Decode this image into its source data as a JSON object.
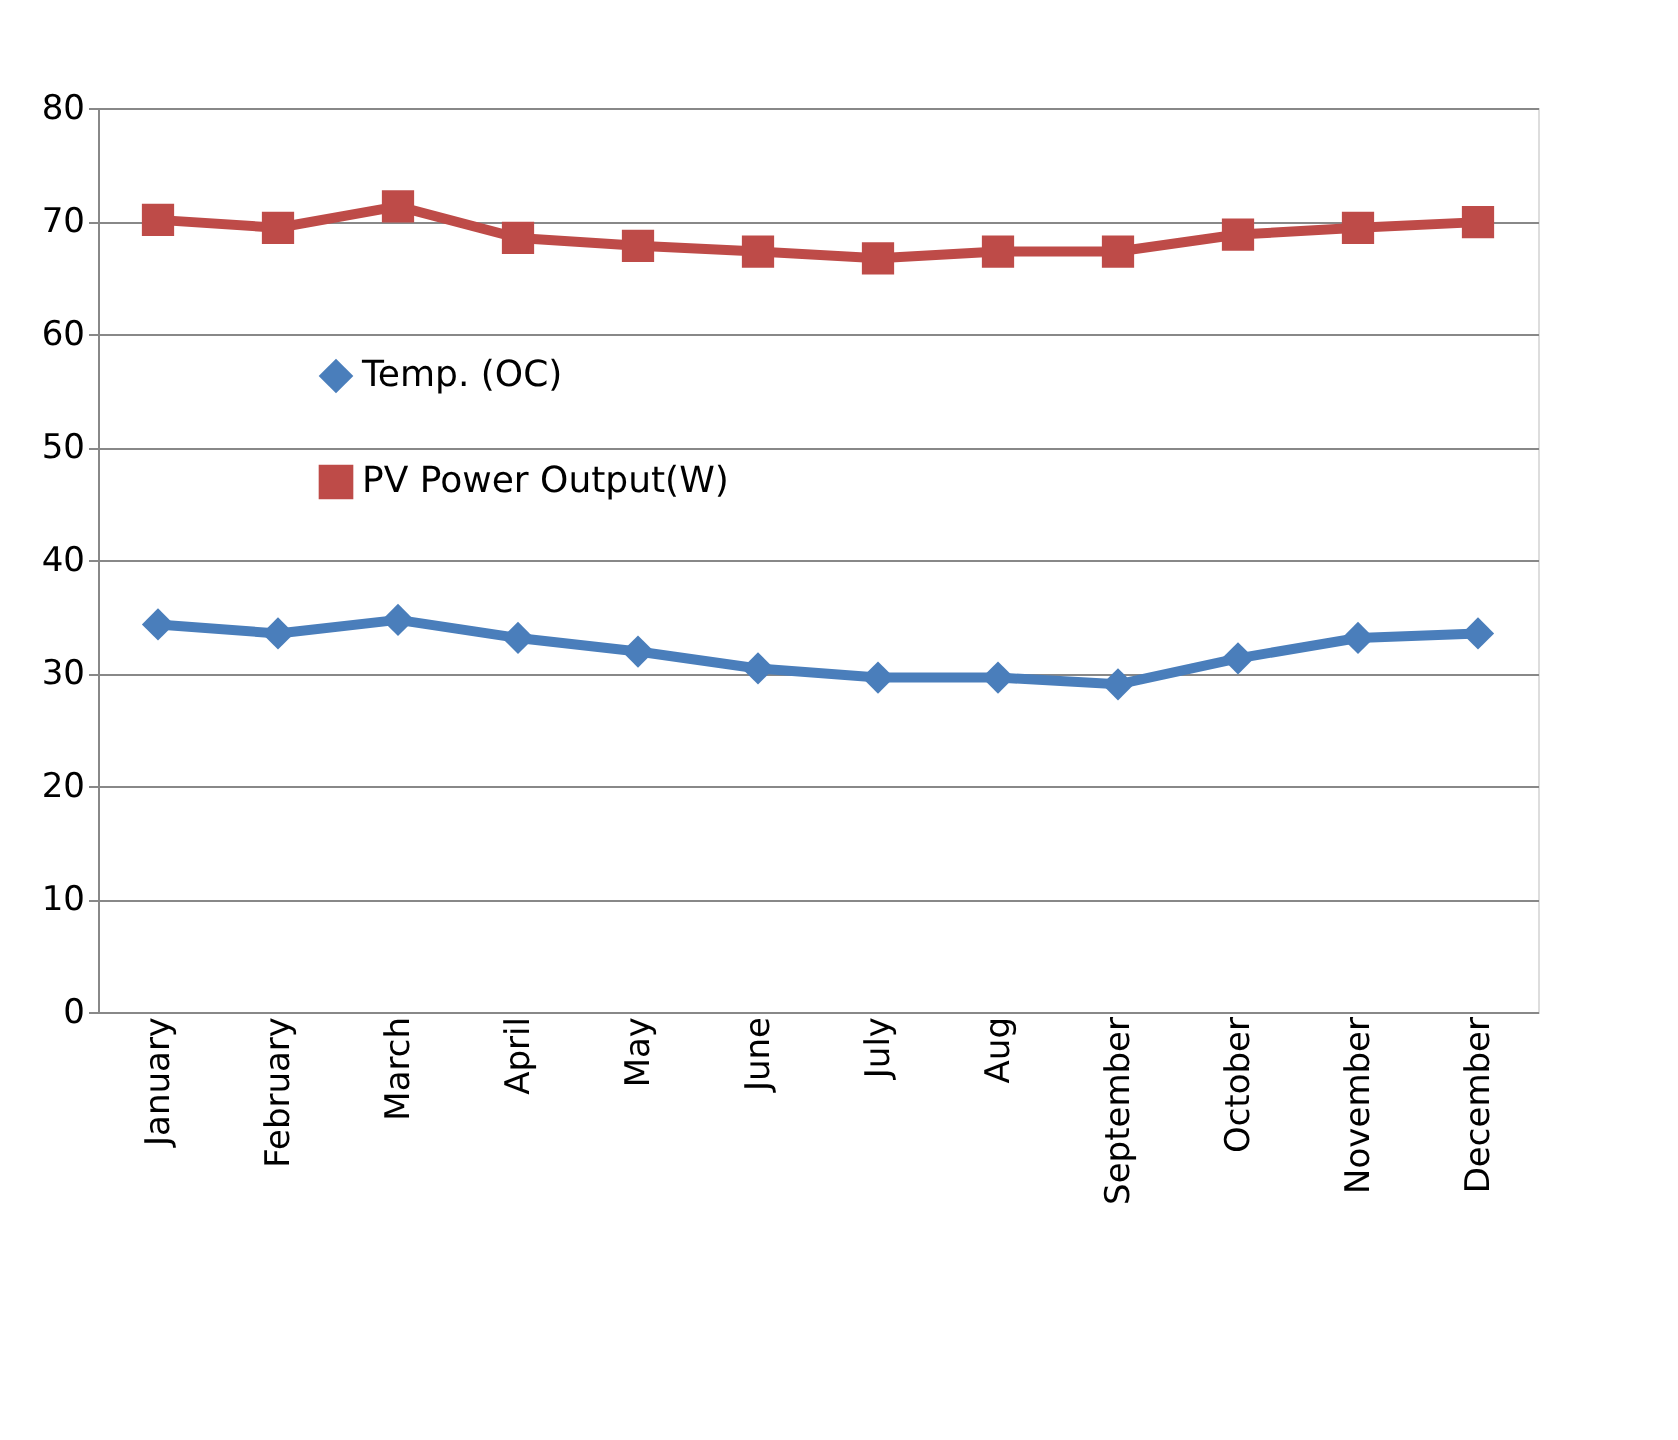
{
  "chart_data": {
    "type": "line",
    "categories": [
      "January",
      "February",
      "March",
      "April",
      "May",
      "June",
      "July",
      "Aug",
      "September",
      "October",
      "November",
      "December"
    ],
    "series": [
      {
        "name": "Temp. (OC)",
        "color": "#4a7ebb",
        "marker": "diamond",
        "values": [
          34.3,
          33.5,
          34.7,
          33.1,
          31.9,
          30.4,
          29.6,
          29.6,
          29.0,
          31.3,
          33.1,
          33.5
        ]
      },
      {
        "name": "PV Power Output(W)",
        "color": "#be4b48",
        "marker": "square",
        "values": [
          70.1,
          69.4,
          71.3,
          68.5,
          67.8,
          67.3,
          66.7,
          67.3,
          67.3,
          68.8,
          69.4,
          69.9
        ]
      }
    ],
    "ylim": [
      0,
      80
    ],
    "yticks": [
      0,
      10,
      20,
      30,
      40,
      50,
      60,
      70,
      80
    ],
    "grid": "y",
    "legend": "left",
    "line_style": "solid"
  }
}
